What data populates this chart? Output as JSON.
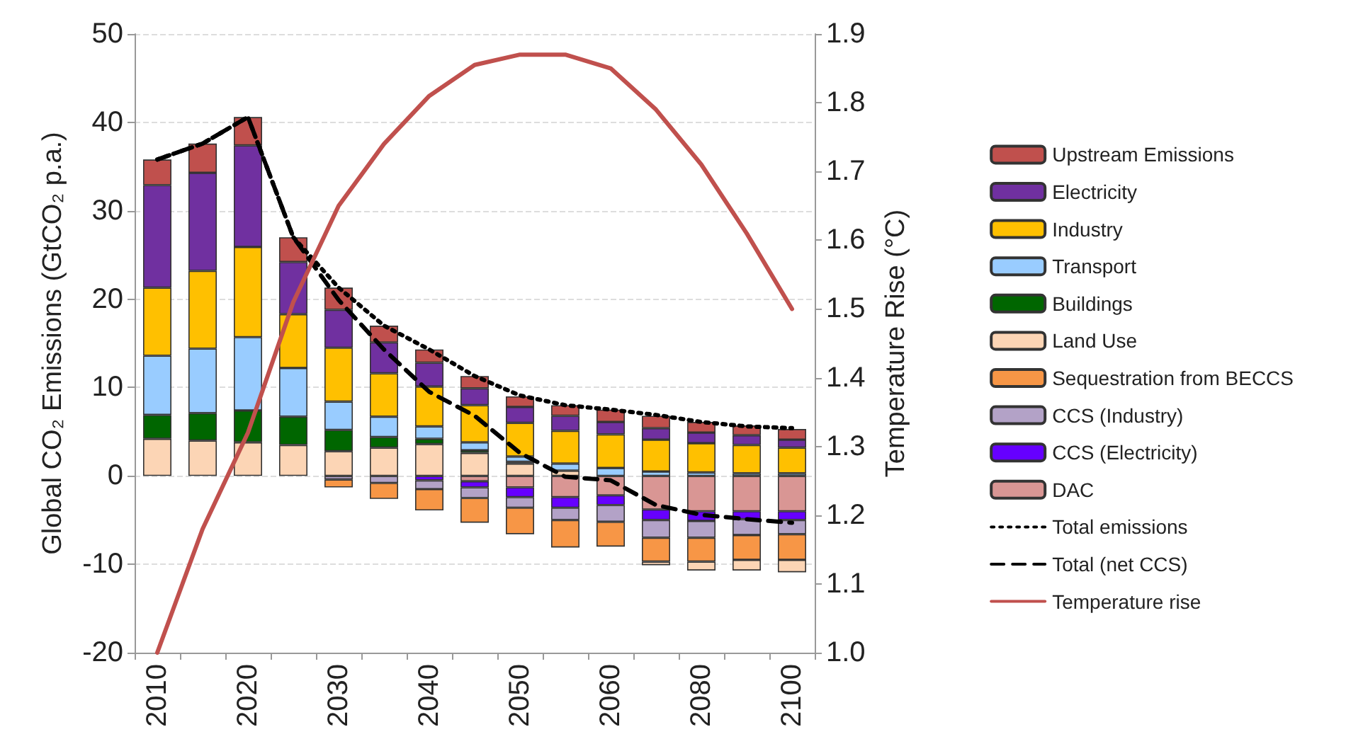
{
  "chart_data": {
    "type": "bar",
    "stacked": true,
    "categories": [
      "2010",
      null,
      "2020",
      null,
      "2030",
      null,
      "2040",
      null,
      "2050",
      null,
      "2060",
      null,
      "2080",
      null,
      "2100"
    ],
    "ylabel": "Global CO₂ Emissions (GtCO₂ p.a.)",
    "y2label": "Temperature Rise (°C)",
    "ylim": [
      -20,
      50
    ],
    "yticks": [
      -20,
      -10,
      0,
      10,
      20,
      30,
      40,
      50
    ],
    "y2lim": [
      1.0,
      1.9
    ],
    "y2ticks": [
      {
        "value": 1.0,
        "label": "1.0"
      },
      1.1,
      1.2,
      1.3,
      1.4,
      1.5,
      1.6,
      1.7,
      1.8,
      1.9
    ],
    "grid": "y",
    "legend": "right",
    "marker": "none",
    "series": [
      {
        "name": "DAC",
        "color": "#d99694",
        "values": [
          null,
          null,
          null,
          null,
          null,
          null,
          null,
          -0.6,
          -1.3,
          -2.4,
          -2.2,
          -3.8,
          -4.0,
          -4.0,
          -4.0
        ]
      },
      {
        "name": "CCS (Electricity)",
        "color": "#6600ff",
        "values": [
          null,
          null,
          null,
          null,
          null,
          null,
          -0.5,
          -0.7,
          -1.1,
          -1.2,
          -1.1,
          -1.2,
          -1.1,
          -0.9,
          -1.0
        ]
      },
      {
        "name": "CCS (Industry)",
        "color": "#b3a2c7",
        "values": [
          null,
          null,
          null,
          null,
          -0.4,
          -0.8,
          -1.0,
          -1.2,
          -1.2,
          -1.4,
          -1.9,
          -2.0,
          -1.9,
          -1.8,
          -1.6
        ]
      },
      {
        "name": "Sequestration from BECCS",
        "color": "#f79646",
        "values": [
          null,
          null,
          null,
          null,
          -0.9,
          -1.8,
          -2.4,
          -2.8,
          -3.0,
          -3.1,
          -2.8,
          -2.7,
          -2.7,
          -2.8,
          -2.9
        ]
      },
      {
        "name": "Land Use",
        "color": "#fcd5b5",
        "values": [
          4.2,
          4.0,
          3.8,
          3.5,
          2.8,
          3.2,
          3.6,
          2.6,
          1.4,
          0.6,
          null,
          -0.4,
          -1.0,
          -1.2,
          -1.4
        ]
      },
      {
        "name": "Buildings",
        "color": "#006600",
        "values": [
          2.7,
          3.1,
          3.6,
          3.2,
          2.4,
          1.2,
          0.6,
          0.3,
          0.2,
          null,
          null,
          null,
          null,
          null,
          null
        ]
      },
      {
        "name": "Transport",
        "color": "#99ccff",
        "values": [
          6.7,
          7.3,
          8.3,
          5.5,
          3.2,
          2.3,
          1.4,
          0.9,
          0.6,
          0.8,
          0.9,
          0.5,
          0.4,
          0.3,
          0.3
        ]
      },
      {
        "name": "Industry",
        "color": "#ffc000",
        "values": [
          7.7,
          8.8,
          10.2,
          6.1,
          6.1,
          4.9,
          4.5,
          4.2,
          3.8,
          3.7,
          3.8,
          3.6,
          3.3,
          3.2,
          2.9
        ]
      },
      {
        "name": "Electricity",
        "color": "#7030a0",
        "values": [
          11.6,
          11.1,
          11.5,
          5.9,
          4.3,
          3.5,
          2.7,
          1.9,
          1.8,
          1.7,
          1.4,
          1.3,
          1.2,
          1.1,
          0.9
        ]
      },
      {
        "name": "Upstream Emissions",
        "color": "#c0504d",
        "values": [
          2.9,
          3.3,
          3.2,
          2.8,
          2.5,
          1.9,
          1.5,
          1.4,
          1.2,
          1.2,
          1.4,
          1.4,
          1.2,
          1.1,
          1.2
        ]
      },
      {
        "name": "Total emissions",
        "type": "line",
        "line_style": "dotted",
        "color": "#000000",
        "values": [
          35.8,
          37.6,
          40.6,
          27.0,
          21.3,
          17.0,
          14.3,
          11.3,
          9.1,
          8.0,
          7.5,
          6.9,
          6.1,
          5.6,
          5.4
        ]
      },
      {
        "name": "Total (net CCS)",
        "type": "line",
        "line_style": "dashed",
        "color": "#000000",
        "values": [
          35.8,
          37.6,
          40.6,
          27.0,
          19.9,
          14.3,
          9.5,
          6.8,
          2.6,
          -0.1,
          -0.5,
          -3.3,
          -4.4,
          -4.9,
          -5.3
        ]
      },
      {
        "name": "Temperature rise",
        "type": "line",
        "axis": "y2",
        "line_style": "solid",
        "color": "#c0504d",
        "values": [
          1.0,
          1.18,
          1.32,
          1.51,
          1.65,
          1.74,
          1.81,
          1.855,
          1.87,
          1.87,
          1.85,
          1.79,
          1.71,
          1.61,
          1.5
        ]
      }
    ]
  }
}
